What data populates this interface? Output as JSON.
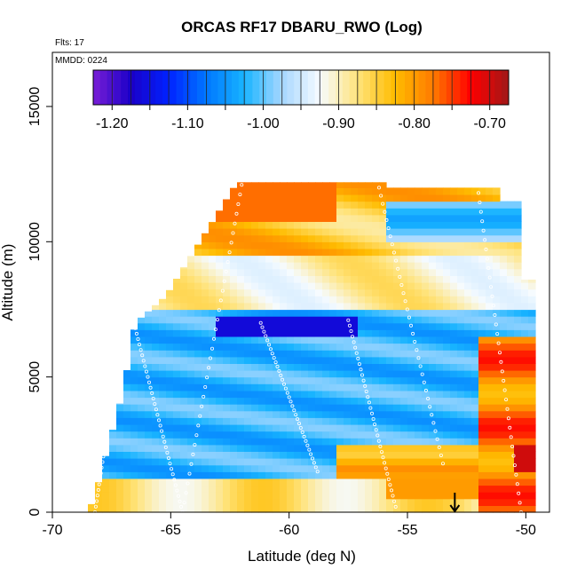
{
  "chart_data": {
    "type": "heatmap",
    "title": "ORCAS RF17 DBARU_RWO (Log)",
    "flight_note": "Flts: 17",
    "date_note": "MMDD: 0224",
    "xlabel": "Latitude (deg N)",
    "ylabel": "Altitude (m)",
    "xlim": [
      -70,
      -49
    ],
    "ylim": [
      0,
      17000
    ],
    "x_ticks": [
      -70,
      -65,
      -60,
      -55,
      -50
    ],
    "x_tick_labels": [
      "-70",
      "-65",
      "-60",
      "-55",
      "-50"
    ],
    "y_ticks": [
      0,
      5000,
      10000,
      15000
    ],
    "y_tick_labels": [
      "0",
      "5000",
      "10000",
      "15000"
    ],
    "colorbar": {
      "min": -1.225,
      "max": -0.675,
      "ticks": [
        -1.2,
        -1.1,
        -1.0,
        -0.9,
        -0.8,
        -0.7
      ],
      "tick_labels": [
        "-1.20",
        "-1.10",
        "-1.00",
        "-0.90",
        "-0.80",
        "-0.70"
      ],
      "colors": [
        "#7a1fd6",
        "#1a00c8",
        "#0022ff",
        "#0077ff",
        "#18b4ff",
        "#a7d7ff",
        "#f6fbff",
        "#ffe37a",
        "#ffbc00",
        "#ff7a00",
        "#ff0000",
        "#a01818"
      ]
    },
    "marker_arrow_latitude": -53,
    "field_description_grid": {
      "lat_min": -68.5,
      "lat_max": -49.7,
      "alt_step": 250
    },
    "flight_track_profiles": [
      {
        "lat_start": -68.2,
        "lat_end": -67.0,
        "alt_start": 0,
        "alt_end": 7000
      },
      {
        "lat_start": -66.5,
        "lat_end": -64.5,
        "alt_start": 6800,
        "alt_end": 0
      },
      {
        "lat_start": -64.5,
        "lat_end": -62.0,
        "alt_start": 0,
        "alt_end": 12100
      },
      {
        "lat_start": -61.2,
        "lat_end": -58.8,
        "alt_start": 7000,
        "alt_end": 1500
      },
      {
        "lat_start": -57.5,
        "lat_end": -55.5,
        "alt_start": 7100,
        "alt_end": 200
      },
      {
        "lat_start": -56.2,
        "lat_end": -53.5,
        "alt_start": 12000,
        "alt_end": 1800
      },
      {
        "lat_start": -52.0,
        "lat_end": -50.2,
        "alt_start": 11800,
        "alt_end": 0
      }
    ]
  }
}
